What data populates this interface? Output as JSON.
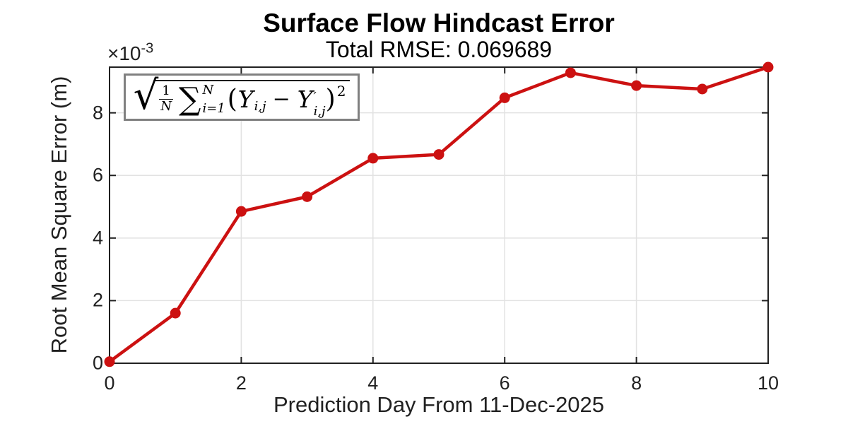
{
  "figure": {
    "background": "#FFFFFF"
  },
  "chart_data": {
    "type": "line",
    "title": "Surface Flow Hindcast Error",
    "subtitle": "Total RMSE: 0.069689",
    "xlabel": "Prediction Day From 11-Dec-2025",
    "ylabel": "Root Mean Square Error (m)",
    "y_scale_label": {
      "base": "×10",
      "exponent": "-3"
    },
    "x": [
      0,
      1,
      2,
      3,
      4,
      5,
      6,
      7,
      8,
      9,
      10
    ],
    "series": [
      {
        "name": "RMSE",
        "values_x1e3": [
          0.05,
          1.6,
          4.85,
          5.32,
          6.55,
          6.67,
          8.48,
          9.28,
          8.87,
          8.76,
          9.46
        ]
      }
    ],
    "xticks": [
      "0",
      "2",
      "4",
      "6",
      "8",
      "10"
    ],
    "xtick_values": [
      0,
      2,
      4,
      6,
      8,
      10
    ],
    "yticks": [
      "0",
      "2",
      "4",
      "6",
      "8"
    ],
    "ytick_values": [
      0,
      2,
      4,
      6,
      8
    ],
    "xlim": [
      0,
      10
    ],
    "ylim_x1e3": [
      0,
      9.46
    ],
    "grid": true,
    "legend": "none",
    "marker": "filled-circle",
    "colors": {
      "line": "#CC1111",
      "axis": "#212121",
      "grid": "#E2E2E2",
      "tick_label": "#212121",
      "annotation_border": "#808080"
    },
    "annotation_formula": {
      "latex": "sqrt( (1/N) * sum_{i=1}^{N} (Y_{i,j} - Y'_{i,j})^2 )",
      "radical": "√",
      "frac_num": "1",
      "frac_den": "N",
      "sigma": "∑",
      "sigma_upper": "N",
      "sigma_lower": "i=1",
      "open_paren": "(",
      "term1_var": "Y",
      "term1_sub": "i,j",
      "operator": "−",
      "term2_var": "Y",
      "term2_prime": "′",
      "term2_sub": "i,j",
      "close_paren": ")",
      "power": "2"
    }
  }
}
